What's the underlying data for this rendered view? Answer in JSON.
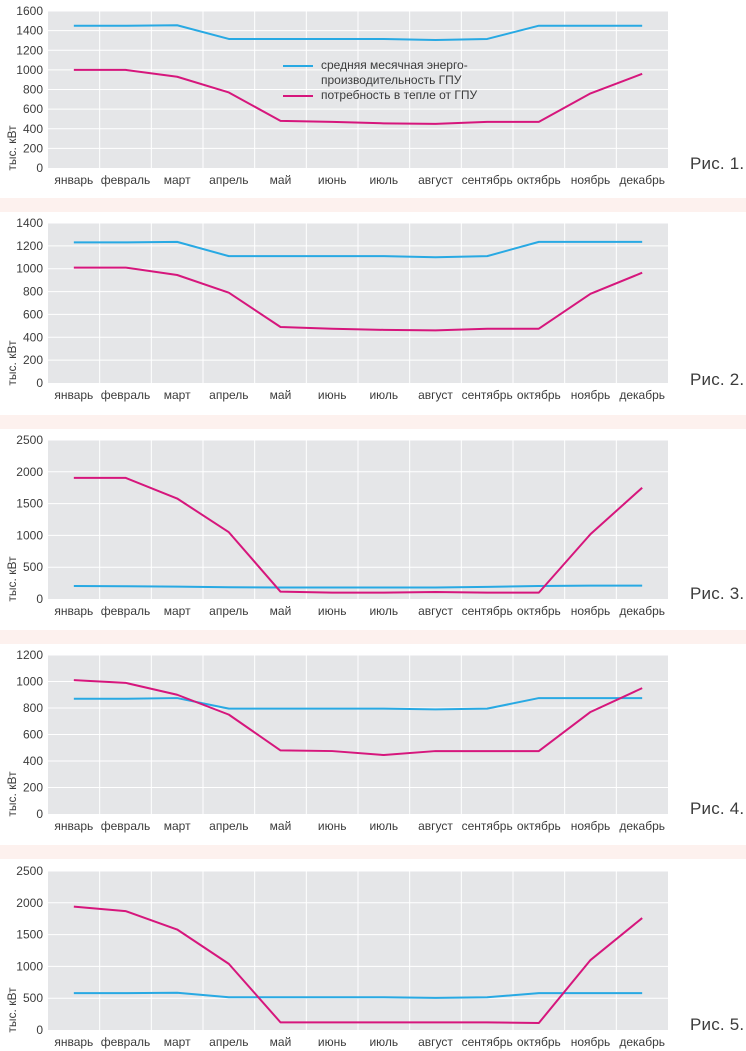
{
  "colors": {
    "plot_bg": "#e5e6e8",
    "grid": "#ffffff",
    "blue": "#28a9e3",
    "magenta": "#d6167c",
    "separator": "#fdf1ee"
  },
  "legend": {
    "blue_label_line1": "средняя месячная энерго-",
    "blue_label_line2": "производительность ГПУ",
    "magenta_label": "потребность в тепле от ГПУ"
  },
  "chart_data": [
    {
      "type": "line",
      "figure_label": "Рис. 1.",
      "ylabel": "тыс. кВт",
      "categories": [
        "январь",
        "февраль",
        "март",
        "апрель",
        "май",
        "июнь",
        "июль",
        "август",
        "сентябрь",
        "октябрь",
        "ноябрь",
        "декабрь"
      ],
      "ylim": [
        0,
        1600
      ],
      "yticks": [
        0,
        200,
        400,
        600,
        800,
        1000,
        1200,
        1400,
        1600
      ],
      "series": [
        {
          "name": "средняя месячная энерго-производительность ГПУ",
          "color": "#28a9e3",
          "values": [
            1450,
            1450,
            1455,
            1315,
            1315,
            1315,
            1315,
            1305,
            1315,
            1450,
            1450,
            1450
          ]
        },
        {
          "name": "потребность в тепле от ГПУ",
          "color": "#d6167c",
          "values": [
            1000,
            1000,
            930,
            770,
            480,
            470,
            455,
            450,
            470,
            470,
            760,
            960
          ]
        }
      ],
      "grid": true,
      "legend": "top-center"
    },
    {
      "type": "line",
      "figure_label": "Рис. 2.",
      "ylabel": "тыс. кВт",
      "categories": [
        "январь",
        "февраль",
        "март",
        "апрель",
        "май",
        "июнь",
        "июль",
        "август",
        "сентябрь",
        "октябрь",
        "ноябрь",
        "декабрь"
      ],
      "ylim": [
        0,
        1400
      ],
      "yticks": [
        0,
        200,
        400,
        600,
        800,
        1000,
        1200,
        1400
      ],
      "series": [
        {
          "color": "#28a9e3",
          "values": [
            1230,
            1230,
            1235,
            1110,
            1110,
            1110,
            1110,
            1100,
            1110,
            1235,
            1235,
            1235
          ]
        },
        {
          "color": "#d6167c",
          "values": [
            1010,
            1010,
            945,
            790,
            490,
            475,
            465,
            460,
            475,
            475,
            780,
            965
          ]
        }
      ],
      "grid": true
    },
    {
      "type": "line",
      "figure_label": "Рис. 3.",
      "ylabel": "тыс. кВт",
      "categories": [
        "январь",
        "февраль",
        "март",
        "апрель",
        "май",
        "июнь",
        "июль",
        "август",
        "сентябрь",
        "октябрь",
        "ноябрь",
        "декабрь"
      ],
      "ylim": [
        0,
        2500
      ],
      "yticks": [
        0,
        500,
        1000,
        1500,
        2000,
        2500
      ],
      "series": [
        {
          "color": "#28a9e3",
          "values": [
            205,
            200,
            195,
            185,
            180,
            180,
            180,
            180,
            190,
            205,
            210,
            210
          ]
        },
        {
          "color": "#d6167c",
          "values": [
            1905,
            1905,
            1580,
            1050,
            115,
            100,
            100,
            110,
            100,
            100,
            1020,
            1750
          ]
        }
      ],
      "grid": true
    },
    {
      "type": "line",
      "figure_label": "Рис. 4.",
      "ylabel": "тыс. кВт",
      "categories": [
        "январь",
        "февраль",
        "март",
        "апрель",
        "май",
        "июнь",
        "июль",
        "август",
        "сентябрь",
        "октябрь",
        "ноябрь",
        "декабрь"
      ],
      "ylim": [
        0,
        1200
      ],
      "yticks": [
        0,
        200,
        400,
        600,
        800,
        1000,
        1200
      ],
      "series": [
        {
          "color": "#28a9e3",
          "values": [
            870,
            870,
            875,
            795,
            795,
            795,
            795,
            790,
            795,
            875,
            875,
            875
          ]
        },
        {
          "color": "#d6167c",
          "values": [
            1010,
            990,
            900,
            750,
            480,
            475,
            445,
            475,
            475,
            475,
            770,
            950
          ]
        }
      ],
      "grid": true
    },
    {
      "type": "line",
      "figure_label": "Рис. 5.",
      "ylabel": "тыс. кВт",
      "categories": [
        "январь",
        "февраль",
        "март",
        "апрель",
        "май",
        "июнь",
        "июль",
        "август",
        "сентябрь",
        "октябрь",
        "ноябрь",
        "декабрь"
      ],
      "ylim": [
        0,
        2500
      ],
      "yticks": [
        0,
        500,
        1000,
        1500,
        2000,
        2500
      ],
      "series": [
        {
          "color": "#28a9e3",
          "values": [
            580,
            580,
            585,
            515,
            515,
            515,
            515,
            505,
            515,
            580,
            580,
            580
          ]
        },
        {
          "color": "#d6167c",
          "values": [
            1940,
            1870,
            1580,
            1040,
            120,
            120,
            120,
            120,
            120,
            110,
            1100,
            1760
          ]
        }
      ],
      "grid": true
    }
  ]
}
